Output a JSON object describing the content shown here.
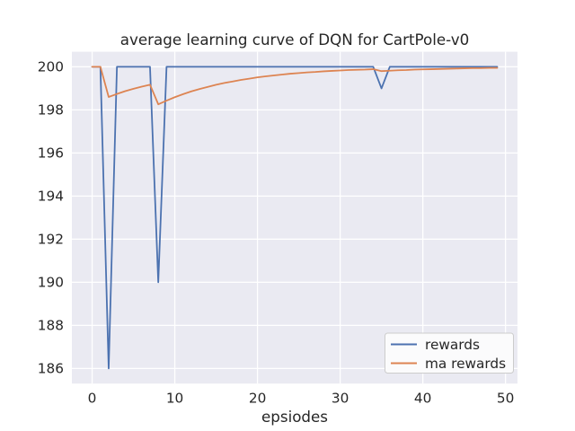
{
  "figure": {
    "background": "#FFFFFF",
    "plot_background": "#EAEAF2",
    "grid_color": "#FFFFFF",
    "text_color": "#262626",
    "legend_face": "#FBFBFC",
    "legend_edge": "#CCCCCC"
  },
  "chart_data": {
    "type": "line",
    "title": "average learning curve of DQN for CartPole-v0",
    "xlabel": "epsiodes",
    "ylabel": "",
    "x": [
      0,
      1,
      2,
      3,
      4,
      5,
      6,
      7,
      8,
      9,
      10,
      11,
      12,
      13,
      14,
      15,
      16,
      17,
      18,
      19,
      20,
      21,
      22,
      23,
      24,
      25,
      26,
      27,
      28,
      29,
      30,
      31,
      32,
      33,
      34,
      35,
      36,
      37,
      38,
      39,
      40,
      41,
      42,
      43,
      44,
      45,
      46,
      47,
      48,
      49
    ],
    "series": [
      {
        "name": "rewards",
        "color": "#4C72B0",
        "values": [
          200,
          200,
          186,
          200,
          200,
          200,
          200,
          200,
          190,
          200,
          200,
          200,
          200,
          200,
          200,
          200,
          200,
          200,
          200,
          200,
          200,
          200,
          200,
          200,
          200,
          200,
          200,
          200,
          200,
          200,
          200,
          200,
          200,
          200,
          200,
          199,
          200,
          200,
          200,
          200,
          200,
          200,
          200,
          200,
          200,
          200,
          200,
          200,
          200,
          200
        ]
      },
      {
        "name": "ma rewards",
        "color": "#DD8452",
        "values": [
          200,
          200,
          198.6,
          198.74,
          198.87,
          198.98,
          199.08,
          199.17,
          198.26,
          198.43,
          198.59,
          198.73,
          198.86,
          198.97,
          199.07,
          199.17,
          199.25,
          199.32,
          199.39,
          199.45,
          199.51,
          199.56,
          199.6,
          199.64,
          199.68,
          199.71,
          199.74,
          199.76,
          199.79,
          199.81,
          199.83,
          199.85,
          199.86,
          199.87,
          199.89,
          199.8,
          199.82,
          199.84,
          199.85,
          199.87,
          199.88,
          199.89,
          199.9,
          199.91,
          199.92,
          199.93,
          199.94,
          199.94,
          199.95,
          199.95
        ]
      }
    ],
    "xlim": [
      -2.45,
      51.45
    ],
    "ylim": [
      185.3,
      200.7
    ],
    "xticks": [
      0,
      10,
      20,
      30,
      40,
      50
    ],
    "yticks": [
      186,
      188,
      190,
      192,
      194,
      196,
      198,
      200
    ],
    "grid": true,
    "legend_position": "lower right"
  }
}
